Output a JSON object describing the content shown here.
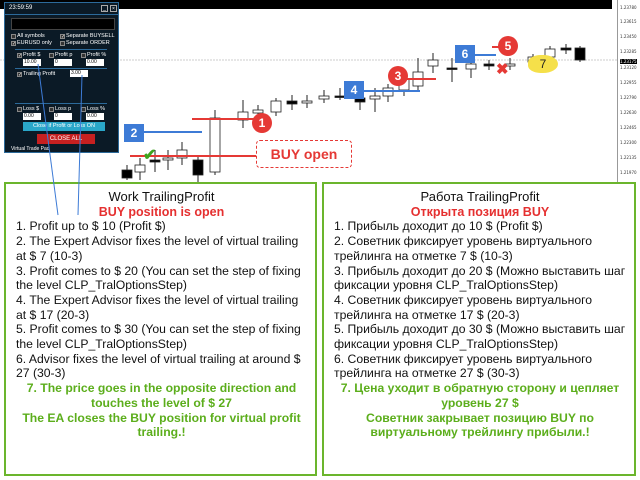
{
  "chart": {
    "price_scale": [
      "1.23780",
      "1.23615",
      "1.23450",
      "1.23285",
      "1.23175",
      "1.23120",
      "1.22955",
      "1.22790",
      "1.22630",
      "1.22465",
      "1.22300",
      "1.22135",
      "1.21970"
    ],
    "current_price": "1.23175",
    "markers": {
      "m1": "1",
      "m2": "2",
      "m3": "3",
      "m4": "4",
      "m5": "5",
      "m6": "6",
      "m7": "7"
    },
    "buy_open_label": "BUY open",
    "colors": {
      "blue_marker": "#3d7bd6",
      "red_marker": "#e53935",
      "callout": "#f5e04a"
    }
  },
  "panel": {
    "clock": "23:59:59",
    "title": "Virtual Trade Pad",
    "all_symbols": "All symbols",
    "separate_buysell": "Separate BUYSELL",
    "eurusd_only": "EURUSD only",
    "separate_order": "Separate ORDER",
    "profit_usd": "Profit $",
    "profit_p": "Profit p",
    "profit_pct": "Profit %",
    "profit_usd_val": "10.00",
    "profit_p_val": "0",
    "profit_pct_val": "0.00",
    "trailing_profit": "Trailing Profit",
    "trailing_val": "3.00",
    "loss_usd": "Loss $",
    "loss_p": "Loss p",
    "loss_pct": "Loss %",
    "loss_usd_val": "0.00",
    "loss_p_val": "0",
    "loss_pct_val": "0.00",
    "close_profit_btn": "Close if Profit or Loss ON",
    "close_all_btn": "CLOSE ALL"
  },
  "left_box": {
    "title": "Work TrailingProfit",
    "subtitle": "BUY position is open",
    "items": [
      "1. Profit up to $ 10 (Profit $)",
      "2. The Expert Advisor fixes the level of virtual trailing at $ 7 (10-3)",
      "3. Profit comes to $ 20 (You can set the step of fixing the level CLP_TralOptionsStep)",
      "4. The Expert Advisor fixes the level of virtual trailing at $ 17 (20-3)",
      "5. Profit comes to $ 30 (You can set the step of fixing the level CLP_TralOptionsStep)",
      "6. Advisor fixes the level of virtual trailing at around $ 27 (30-3)"
    ],
    "final": "7. The price goes in the opposite direction and touches the level of $ 27",
    "final2": "The EA closes the BUY position for virtual profit trailing.!"
  },
  "right_box": {
    "title": "Работа TrailingProfit",
    "subtitle": "Открыта позиция BUY",
    "items": [
      "1. Прибыль доходит до 10 $ (Profit $)",
      "2. Советник фиксирует уровень виртуального трейлинга на отметке 7 $ (10-3)",
      "3. Прибыль доходит до 20 $ (Можно выставить шаг фиксации уровня CLP_TralOptionsStep)",
      "4. Советник фиксирует уровень виртуального трейлинга на отметке 17 $ (20-3)",
      "5. Прибыль доходит до 30 $ (Можно выставить шаг фиксации уровня CLP_TralOptionsStep)",
      "6. Советник фиксирует уровень виртуального трейлинга на отметке 27 $ (30-3)"
    ],
    "final": "7. Цена уходит в обратную сторону и цепляет уровень 27 $",
    "final2": "Советник закрывает позицию BUY по виртуальному трейлингу прибыли.!"
  }
}
